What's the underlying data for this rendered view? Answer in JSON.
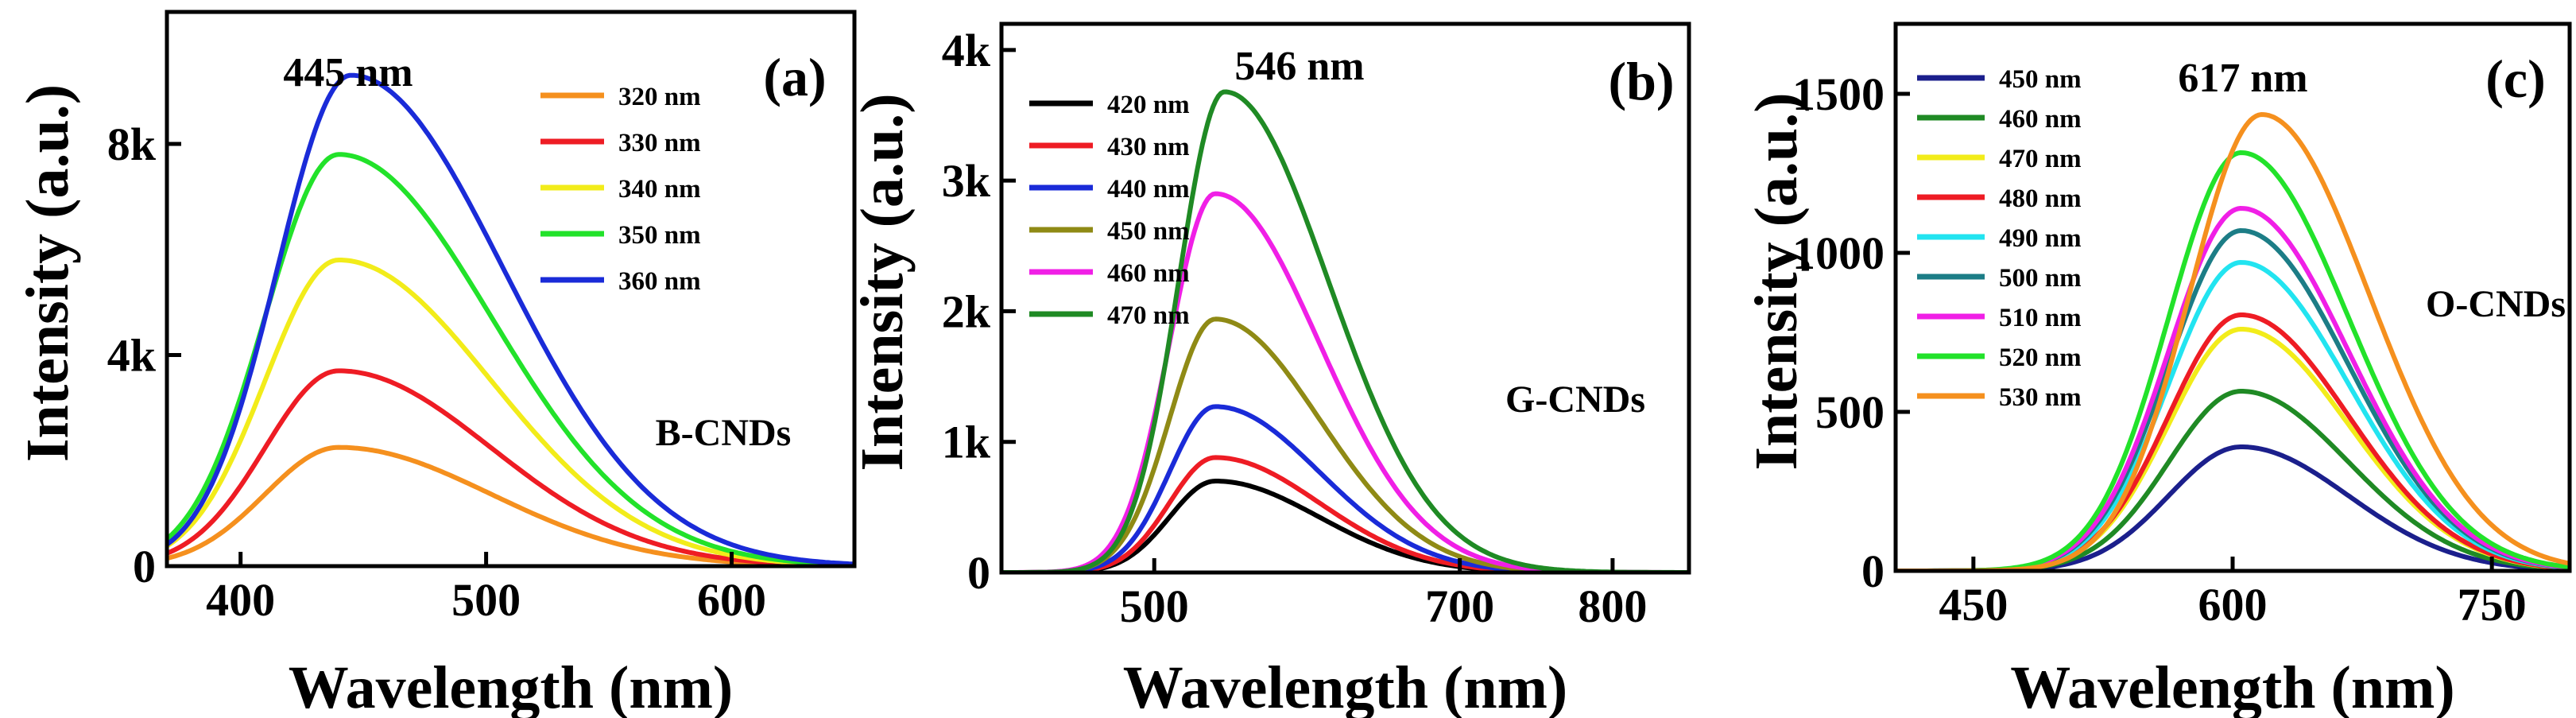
{
  "chart_data": [
    {
      "type": "line",
      "panel": "(a)",
      "sample": "B-CNDs",
      "peak_label": "445 nm",
      "xlabel": "Wavelength (nm)",
      "ylabel": "Intensity (a.u.)",
      "xlim": [
        370,
        650
      ],
      "ylim": [
        0,
        10500
      ],
      "xticks": [
        400,
        500,
        600
      ],
      "xtick_labels": [
        "400",
        "500",
        "600"
      ],
      "yticks": [
        0,
        4000,
        8000
      ],
      "ytick_labels": [
        "0",
        "4k",
        "8k"
      ],
      "peak_x": 440,
      "sigma_left": 30,
      "sigma_right": 62,
      "legend": "top-right",
      "series": [
        {
          "name": "320 nm",
          "color": "#f5901e",
          "peak": 2250
        },
        {
          "name": "330 nm",
          "color": "#ee1c24",
          "peak": 3700
        },
        {
          "name": "340 nm",
          "color": "#f2ec1a",
          "peak": 5800
        },
        {
          "name": "350 nm",
          "color": "#22e22a",
          "peak": 7800
        },
        {
          "name": "360 nm",
          "color": "#1a2bd8",
          "peak": 9300,
          "peak_x": 445
        }
      ]
    },
    {
      "type": "line",
      "panel": "(b)",
      "sample": "G-CNDs",
      "peak_label": "546 nm",
      "xlabel": "Wavelength (nm)",
      "ylabel": "Intensity (a.u.)",
      "xlim": [
        400,
        850
      ],
      "ylim": [
        0,
        4200
      ],
      "xticks": [
        500,
        700,
        800
      ],
      "xtick_labels": [
        "500",
        "700",
        "800"
      ],
      "yticks": [
        0,
        1000,
        2000,
        3000,
        4000
      ],
      "ytick_labels": [
        "0",
        "1k",
        "2k",
        "3k",
        "4k"
      ],
      "peak_x": 540,
      "sigma_left": 30,
      "sigma_right": 68,
      "legend": "top-left",
      "series": [
        {
          "name": "420 nm",
          "color": "#000000",
          "peak": 700
        },
        {
          "name": "430 nm",
          "color": "#ee1c24",
          "peak": 880
        },
        {
          "name": "440 nm",
          "color": "#1a2bd8",
          "peak": 1270
        },
        {
          "name": "450 nm",
          "color": "#8f8a15",
          "peak": 1940
        },
        {
          "name": "460 nm",
          "color": "#f01fe6",
          "peak": 2900
        },
        {
          "name": "470 nm",
          "color": "#1f8a24",
          "peak": 3680,
          "peak_x": 546
        }
      ]
    },
    {
      "type": "line",
      "panel": "(c)",
      "sample": "O-CNDs",
      "peak_label": "617 nm",
      "xlabel": "Wavelength (nm)",
      "ylabel": "Intensity (a.u.)",
      "xlim": [
        405,
        795
      ],
      "ylim": [
        0,
        1720
      ],
      "xticks": [
        450,
        600,
        750
      ],
      "xtick_labels": [
        "450",
        "600",
        "750"
      ],
      "yticks": [
        0,
        500,
        1000,
        1500
      ],
      "ytick_labels": [
        "0",
        "500",
        "1000",
        "1500"
      ],
      "peak_x": 605,
      "sigma_left": 42,
      "sigma_right": 62,
      "legend": "top-left",
      "series": [
        {
          "name": "450 nm",
          "color": "#1b1f8c",
          "peak": 390
        },
        {
          "name": "460 nm",
          "color": "#1f8a24",
          "peak": 565
        },
        {
          "name": "470 nm",
          "color": "#f2ec1a",
          "peak": 760
        },
        {
          "name": "480 nm",
          "color": "#ee1c24",
          "peak": 805
        },
        {
          "name": "490 nm",
          "color": "#22e4f0",
          "peak": 970
        },
        {
          "name": "500 nm",
          "color": "#1c7d86",
          "peak": 1070
        },
        {
          "name": "510 nm",
          "color": "#f01fe6",
          "peak": 1140
        },
        {
          "name": "520 nm",
          "color": "#22e22a",
          "peak": 1315
        },
        {
          "name": "530 nm",
          "color": "#f5901e",
          "peak": 1435,
          "peak_x": 617
        }
      ]
    }
  ]
}
